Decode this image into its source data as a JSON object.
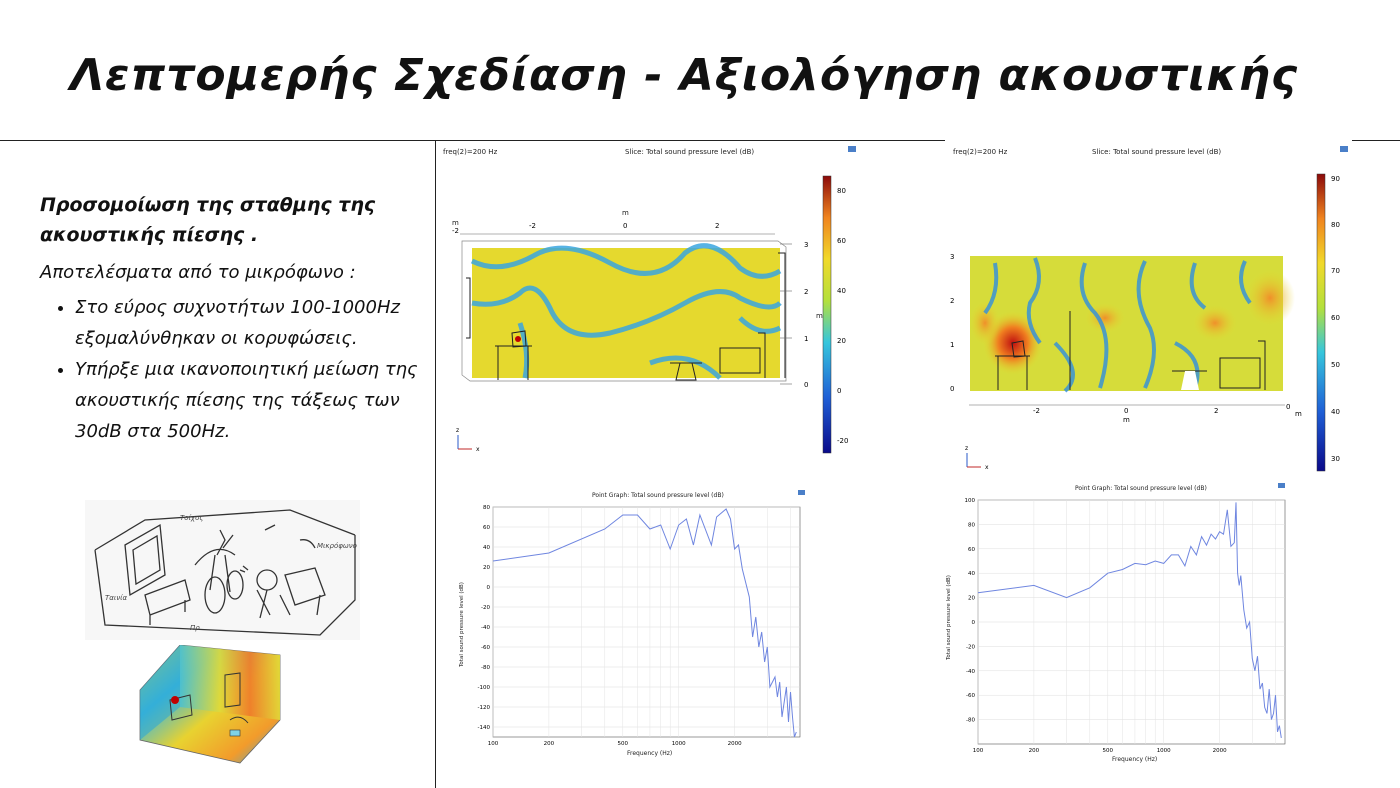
{
  "title": "Λεπτομερής Σχεδίαση - Αξιολόγηση ακουστικής",
  "subtitle": "Προσομοίωση της σταθμης της ακουστικής πίεσης .",
  "intro": "Αποτελέσματα από το μικρόφωνο :",
  "bullets": [
    "Στο εύρος συχνοτήτων 100-1000Hz εξομαλύνθηκαν οι κορυφώσεις.",
    "Υπήρξε μια ικανοποιητική μείωση της ακουστικής πίεσης της τάξεως των 30dB στα 500Hz."
  ],
  "slices": [
    {
      "freq_label": "freq(2)=200 Hz",
      "title": "Slice: Total sound pressure level (dB)",
      "axis_unit": "m",
      "x_ticks": [
        "-2",
        "0",
        "2"
      ],
      "y_ticks": [
        "0",
        "1",
        "2",
        "3"
      ],
      "colorbar_ticks": [
        "80",
        "60",
        "40",
        "20",
        "0",
        "-20"
      ],
      "axis_x": "x",
      "axis_z": "z"
    },
    {
      "freq_label": "freq(2)=200 Hz",
      "title": "Slice: Total sound pressure level (dB)",
      "axis_unit": "m",
      "x_ticks": [
        "-2",
        "0",
        "2"
      ],
      "y_ticks": [
        "0",
        "1",
        "2",
        "3"
      ],
      "colorbar_ticks": [
        "90",
        "80",
        "70",
        "60",
        "50",
        "40",
        "30"
      ],
      "axis_x": "x",
      "axis_z": "z"
    }
  ],
  "chart_data": [
    {
      "type": "line",
      "title": "Point Graph: Total sound pressure level (dB)",
      "xlabel": "Frequency (Hz)",
      "ylabel": "Total sound pressure level (dB)",
      "x_scale": "log",
      "xlim": [
        100,
        4500
      ],
      "ylim": [
        -150,
        80
      ],
      "x_ticks": [
        100,
        200,
        500,
        1000,
        2000
      ],
      "y_ticks": [
        80,
        60,
        40,
        20,
        0,
        -20,
        -40,
        -60,
        -80,
        -100,
        -120,
        -140
      ],
      "color": "#6f86e0",
      "x": [
        100,
        200,
        400,
        500,
        600,
        700,
        800,
        900,
        1000,
        1100,
        1200,
        1300,
        1500,
        1600,
        1800,
        1900,
        2000,
        2100,
        2200,
        2400,
        2500,
        2600,
        2700,
        2800,
        2900,
        3000,
        3100,
        3300,
        3400,
        3500,
        3600,
        3700,
        3800,
        3900,
        4000,
        4100,
        4200,
        4300
      ],
      "y": [
        26,
        34,
        58,
        72,
        72,
        58,
        62,
        38,
        62,
        68,
        42,
        72,
        42,
        70,
        78,
        68,
        38,
        42,
        18,
        -10,
        -50,
        -30,
        -60,
        -45,
        -75,
        -60,
        -100,
        -90,
        -110,
        -95,
        -130,
        -115,
        -100,
        -135,
        -105,
        -130,
        -150,
        -145
      ]
    },
    {
      "type": "line",
      "title": "Point Graph: Total sound pressure level (dB)",
      "xlabel": "Frequency (Hz)",
      "ylabel": "Total sound pressure level (dB)",
      "x_scale": "log",
      "xlim": [
        100,
        4500
      ],
      "ylim": [
        -100,
        100
      ],
      "x_ticks": [
        100,
        200,
        500,
        1000,
        2000
      ],
      "y_ticks": [
        100,
        80,
        60,
        40,
        20,
        0,
        -20,
        -40,
        -60,
        -80
      ],
      "color": "#6f86e0",
      "x": [
        100,
        200,
        300,
        400,
        500,
        600,
        700,
        800,
        900,
        1000,
        1100,
        1200,
        1300,
        1400,
        1500,
        1600,
        1700,
        1800,
        1900,
        2000,
        2100,
        2200,
        2300,
        2400,
        2450,
        2500,
        2550,
        2600,
        2700,
        2800,
        2900,
        3000,
        3100,
        3200,
        3300,
        3400,
        3500,
        3600,
        3700,
        3800,
        3900,
        4000,
        4100,
        4200,
        4300
      ],
      "y": [
        24,
        30,
        20,
        28,
        40,
        43,
        48,
        47,
        50,
        48,
        55,
        55,
        46,
        62,
        55,
        70,
        63,
        72,
        68,
        74,
        72,
        92,
        62,
        65,
        98,
        40,
        30,
        38,
        10,
        -5,
        0,
        -30,
        -40,
        -28,
        -55,
        -50,
        -70,
        -75,
        -55,
        -80,
        -75,
        -60,
        -90,
        -85,
        -95
      ]
    }
  ]
}
